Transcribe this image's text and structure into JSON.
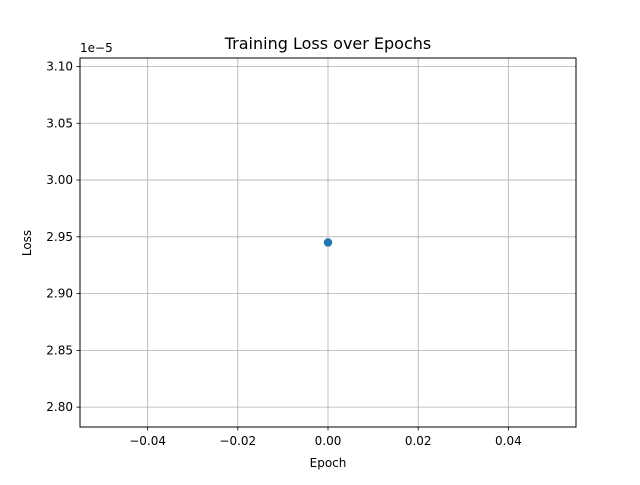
{
  "chart_data": {
    "type": "scatter",
    "title": "Training Loss over Epochs",
    "xlabel": "Epoch",
    "ylabel": "Loss",
    "y_offset_label": "1e−5",
    "xlim": [
      -0.055,
      0.055
    ],
    "ylim": [
      2.7825,
      3.1075
    ],
    "xticks": [
      -0.04,
      -0.02,
      0.0,
      0.02,
      0.04
    ],
    "xtick_labels": [
      "−0.04",
      "−0.02",
      "0.00",
      "0.02",
      "0.04"
    ],
    "yticks": [
      2.8,
      2.85,
      2.9,
      2.95,
      3.0,
      3.05,
      3.1
    ],
    "ytick_labels": [
      "2.80",
      "2.85",
      "2.90",
      "2.95",
      "3.00",
      "3.05",
      "3.10"
    ],
    "grid": true,
    "series": [
      {
        "x": [
          0
        ],
        "y": [
          2.945
        ],
        "color": "#1f77b4",
        "marker": "circle"
      }
    ]
  }
}
